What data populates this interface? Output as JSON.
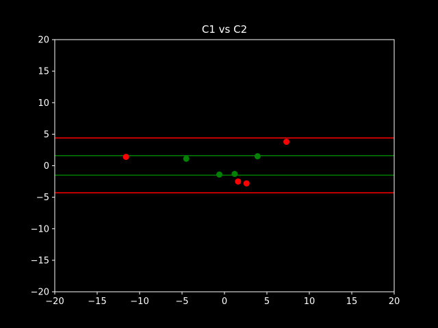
{
  "chart_data": {
    "type": "scatter",
    "title": "C1 vs C2",
    "xlabel": "",
    "ylabel": "",
    "xlim": [
      -20,
      20
    ],
    "ylim": [
      -20,
      20
    ],
    "grid": false,
    "background": "#000000",
    "axis_color": "#ffffff",
    "x_ticks": [
      -20,
      -15,
      -10,
      -5,
      0,
      5,
      10,
      15,
      20
    ],
    "y_ticks": [
      -20,
      -15,
      -10,
      -5,
      0,
      5,
      10,
      15,
      20
    ],
    "x_tick_labels": [
      "−20",
      "−15",
      "−10",
      "−5",
      "0",
      "5",
      "10",
      "15",
      "20"
    ],
    "y_tick_labels": [
      "−20",
      "−15",
      "−10",
      "−5",
      "0",
      "5",
      "10",
      "15",
      "20"
    ],
    "series": [
      {
        "color": "#008000",
        "points": [
          {
            "x": -4.5,
            "y": 1.1
          },
          {
            "x": -0.6,
            "y": -1.4
          },
          {
            "x": 1.2,
            "y": -1.3
          },
          {
            "x": 3.9,
            "y": 1.5
          }
        ]
      },
      {
        "color": "#ff0000",
        "points": [
          {
            "x": -11.6,
            "y": 1.4
          },
          {
            "x": 1.6,
            "y": -2.5
          },
          {
            "x": 2.6,
            "y": -2.8
          },
          {
            "x": 7.3,
            "y": 3.8
          }
        ]
      }
    ],
    "hlines": [
      {
        "y": 4.4,
        "color": "#ff0000"
      },
      {
        "y": 1.6,
        "color": "#008000"
      },
      {
        "y": -1.5,
        "color": "#008000"
      },
      {
        "y": -4.3,
        "color": "#ff0000"
      }
    ]
  }
}
